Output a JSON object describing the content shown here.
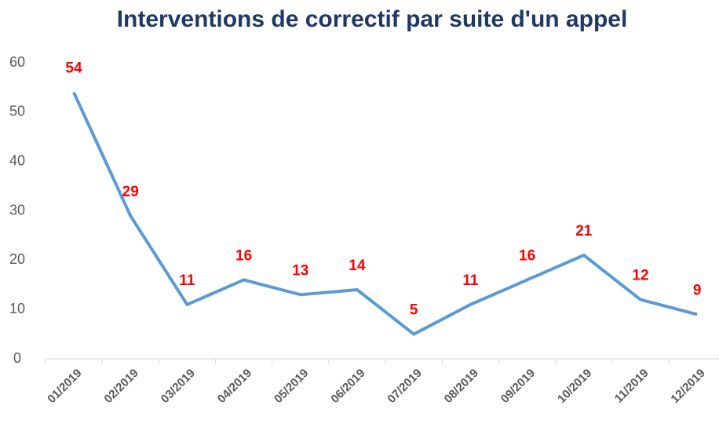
{
  "chart_data": {
    "type": "line",
    "title": "Interventions de correctif par suite d'un appel",
    "categories": [
      "01/2019",
      "02/2019",
      "03/2019",
      "04/2019",
      "05/2019",
      "06/2019",
      "07/2019",
      "08/2019",
      "09/2019",
      "10/2019",
      "11/2019",
      "12/2019"
    ],
    "values": [
      54,
      29,
      11,
      16,
      13,
      14,
      5,
      11,
      16,
      21,
      12,
      9
    ],
    "color": "#5b9bd5",
    "label_color": "#ff0000",
    "ylim": [
      0,
      60
    ],
    "yticks": [
      0,
      10,
      20,
      30,
      40,
      50,
      60
    ],
    "grid": false
  }
}
